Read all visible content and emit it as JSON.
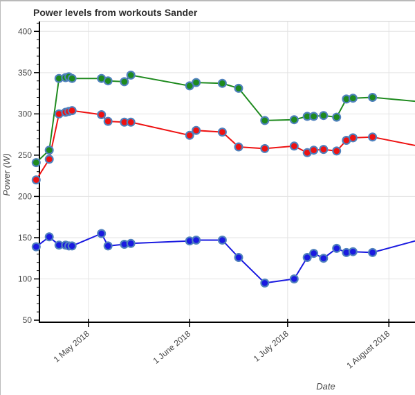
{
  "window": {
    "background": "#ffffff",
    "border_color": "#b9b9b9"
  },
  "chart_data": {
    "type": "line",
    "title": "Power levels from workouts Sander",
    "title_color": "#2e2e2e",
    "xlabel": "Date",
    "ylabel": "Power (W)",
    "axis_title_color": "#444444",
    "tick_label_color": "#444444",
    "grid": true,
    "grid_color": "#e3e3e3",
    "plot_top_border_color": "#cccccc",
    "axis_line_color": "#000000",
    "legend": "none",
    "marker_stroke_color": "#4f81bd",
    "x_axis": {
      "range": [
        "2018-04-16",
        "2018-08-09"
      ],
      "ticks": [
        {
          "date": "2018-05-01",
          "label": "1 May 2018"
        },
        {
          "date": "2018-06-01",
          "label": "1 June 2018"
        },
        {
          "date": "2018-07-01",
          "label": "1 July 2018"
        },
        {
          "date": "2018-08-01",
          "label": "1 August 2018"
        }
      ]
    },
    "y_axis": {
      "range": [
        47.5,
        412
      ],
      "ticks": [
        50,
        100,
        150,
        200,
        250,
        300,
        350,
        400
      ],
      "minor_step": 10
    },
    "series": [
      {
        "name": "green",
        "color": "#1e8a1e"
      },
      {
        "name": "red",
        "color": "#ee1111"
      },
      {
        "name": "blue",
        "color": "#1a1ae0"
      }
    ],
    "points": [
      {
        "date": "2018-04-15",
        "green": 241,
        "red": 220,
        "blue": 139
      },
      {
        "date": "2018-04-19",
        "green": 256,
        "red": 245,
        "blue": 151
      },
      {
        "date": "2018-04-22",
        "green": 343,
        "red": 300,
        "blue": 141
      },
      {
        "date": "2018-04-24",
        "green": 344,
        "red": 302,
        "blue": 141
      },
      {
        "date": "2018-04-25",
        "green": 345,
        "red": 303,
        "blue": 140
      },
      {
        "date": "2018-04-26",
        "green": 343,
        "red": 304,
        "blue": 140
      },
      {
        "date": "2018-05-05",
        "green": 343,
        "red": 299,
        "blue": 155
      },
      {
        "date": "2018-05-07",
        "green": 340,
        "red": 291,
        "blue": 140
      },
      {
        "date": "2018-05-12",
        "green": 339,
        "red": 290,
        "blue": 142
      },
      {
        "date": "2018-05-14",
        "green": 347,
        "red": 290,
        "blue": 143
      },
      {
        "date": "2018-06-01",
        "green": 334,
        "red": 274,
        "blue": 146
      },
      {
        "date": "2018-06-03",
        "green": 338,
        "red": 280,
        "blue": 147
      },
      {
        "date": "2018-06-11",
        "green": 337,
        "red": 278,
        "blue": 147
      },
      {
        "date": "2018-06-16",
        "green": 331,
        "red": 260,
        "blue": 126
      },
      {
        "date": "2018-06-24",
        "green": 292,
        "red": 258,
        "blue": 95
      },
      {
        "date": "2018-07-03",
        "green": 293,
        "red": 261,
        "blue": 100
      },
      {
        "date": "2018-07-07",
        "green": 297,
        "red": 253,
        "blue": 126
      },
      {
        "date": "2018-07-09",
        "green": 297,
        "red": 256,
        "blue": 131
      },
      {
        "date": "2018-07-12",
        "green": 298,
        "red": 257,
        "blue": 125
      },
      {
        "date": "2018-07-16",
        "green": 296,
        "red": 255,
        "blue": 137
      },
      {
        "date": "2018-07-19",
        "green": 318,
        "red": 268,
        "blue": 132
      },
      {
        "date": "2018-07-21",
        "green": 319,
        "red": 271,
        "blue": 133
      },
      {
        "date": "2018-07-27",
        "green": 320,
        "red": 272,
        "blue": 132
      }
    ],
    "edge_point": {
      "date": "2018-08-10",
      "green": 315,
      "red": 261,
      "blue": 147,
      "marker": false
    }
  }
}
